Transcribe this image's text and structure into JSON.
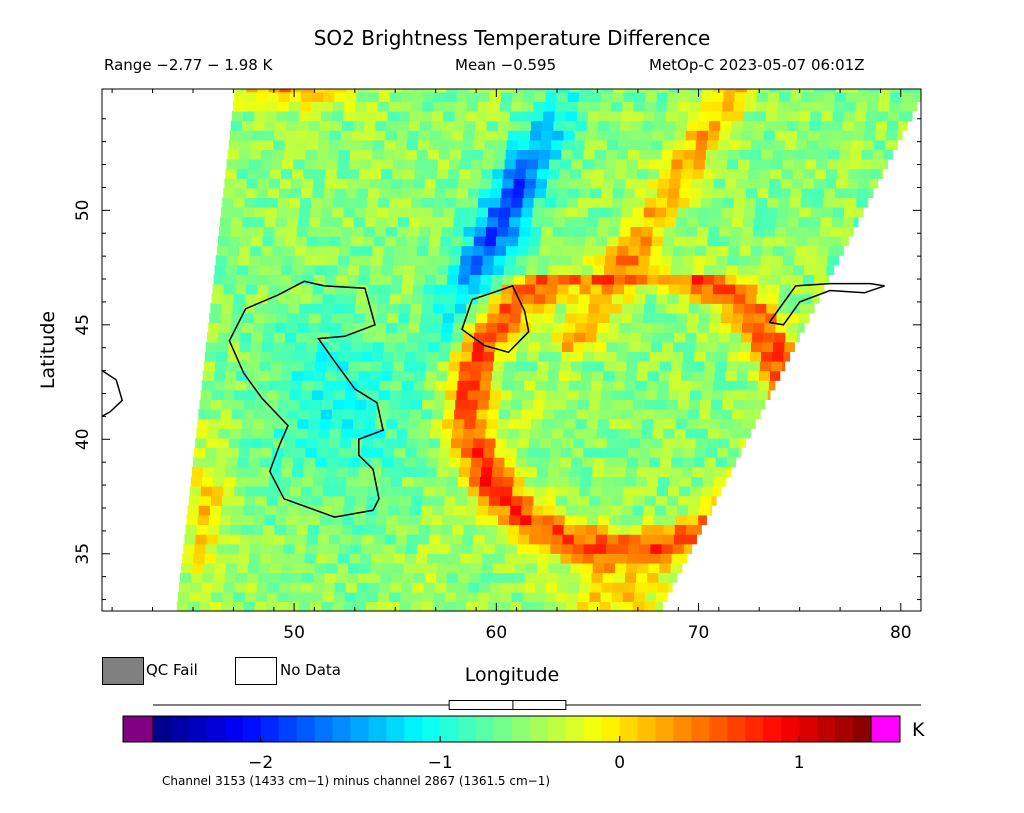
{
  "header": {
    "title": "SO2 Brightness Temperature Difference",
    "range_text": "Range −2.77 − 1.98 K",
    "mean_text": "Mean −0.595",
    "satellite_text": "MetOp-C 2023-05-07 06:01Z"
  },
  "legend": {
    "qc_fail_label": "QC Fail",
    "no_data_label": "No Data",
    "qc_fail_color": "#808080",
    "no_data_color": "#ffffff"
  },
  "colorbar": {
    "unit": "K",
    "min": -2.77,
    "max": 1.98,
    "mean": -0.595,
    "ticks": [
      {
        "value": -2,
        "label": "−2"
      },
      {
        "value": -1,
        "label": "−1"
      },
      {
        "value": 0,
        "label": "0"
      },
      {
        "value": 1,
        "label": "1"
      }
    ],
    "low_color": "#800080",
    "high_color": "#ff00ff"
  },
  "footnote": "Channel 3153 (1433 cm−1) minus channel 2867 (1361.5 cm−1)",
  "chart_data": {
    "type": "heatmap",
    "title": "SO2 Brightness Temperature Difference",
    "xlabel": "Longitude",
    "ylabel": "Latitude",
    "xlim": [
      40.5,
      81
    ],
    "ylim": [
      32.5,
      55.3
    ],
    "x_ticks": [
      {
        "value": 50,
        "label": "50"
      },
      {
        "value": 60,
        "label": "60"
      },
      {
        "value": 70,
        "label": "70"
      },
      {
        "value": 80,
        "label": "80"
      }
    ],
    "y_ticks": [
      {
        "value": 35,
        "label": "35"
      },
      {
        "value": 40,
        "label": "40"
      },
      {
        "value": 45,
        "label": "45"
      },
      {
        "value": 50,
        "label": "50"
      }
    ],
    "units": "K",
    "value_range": [
      -2.77,
      1.98
    ],
    "mean": -0.595,
    "swath_edges": {
      "west": [
        [
          47.1,
          55.3
        ],
        [
          44.2,
          32.5
        ]
      ],
      "east": [
        [
          81,
          54.7
        ],
        [
          68.2,
          32.5
        ]
      ]
    },
    "features": [
      {
        "name": "negative band (blue)",
        "lon": 59.5,
        "lat": 50.0,
        "value": -2.0
      },
      {
        "name": "negative band (blue)",
        "lon": 60.5,
        "lat": 53.0,
        "value": -1.9
      },
      {
        "name": "negative band (blue)",
        "lon": 58.5,
        "lat": 47.0,
        "value": -1.6
      },
      {
        "name": "positive arc (red)",
        "lon": 64.0,
        "lat": 44.5,
        "value": 0.8
      },
      {
        "name": "positive arc (red)",
        "lon": 60.0,
        "lat": 37.5,
        "value": 0.7
      },
      {
        "name": "positive arc (red)",
        "lon": 66.0,
        "lat": 33.5,
        "value": 1.1
      },
      {
        "name": "positive band (orange)",
        "lon": 67.5,
        "lat": 51.0,
        "value": 0.4
      },
      {
        "name": "positive edge (red)",
        "lon": 50.0,
        "lat": 54.8,
        "value": 1.0
      },
      {
        "name": "positive edge (red)",
        "lon": 45.0,
        "lat": 36.5,
        "value": 1.1
      }
    ],
    "coastlines": [
      {
        "name": "caspian-sea",
        "points": [
          [
            51.5,
            46.7
          ],
          [
            53.5,
            46.6
          ],
          [
            54.0,
            45.0
          ],
          [
            52.5,
            44.5
          ],
          [
            51.2,
            44.4
          ],
          [
            52.0,
            43.4
          ],
          [
            53.0,
            42.2
          ],
          [
            54.1,
            41.6
          ],
          [
            54.4,
            40.4
          ],
          [
            53.2,
            40.0
          ],
          [
            53.2,
            39.3
          ],
          [
            53.9,
            38.7
          ],
          [
            54.2,
            37.4
          ],
          [
            53.9,
            36.9
          ],
          [
            52.0,
            36.6
          ],
          [
            49.5,
            37.4
          ],
          [
            48.8,
            38.6
          ],
          [
            49.3,
            39.8
          ],
          [
            49.7,
            40.6
          ],
          [
            48.4,
            41.8
          ],
          [
            47.5,
            42.9
          ],
          [
            46.8,
            44.3
          ],
          [
            47.6,
            45.7
          ],
          [
            49.2,
            46.3
          ],
          [
            50.5,
            46.9
          ],
          [
            51.5,
            46.7
          ]
        ]
      },
      {
        "name": "aral-sea",
        "points": [
          [
            58.8,
            46.1
          ],
          [
            59.8,
            46.4
          ],
          [
            60.8,
            46.7
          ],
          [
            61.4,
            45.6
          ],
          [
            61.6,
            44.7
          ],
          [
            60.6,
            43.8
          ],
          [
            59.4,
            44.1
          ],
          [
            58.3,
            44.8
          ],
          [
            58.8,
            46.1
          ]
        ]
      },
      {
        "name": "lake-balkhash",
        "points": [
          [
            73.5,
            45.1
          ],
          [
            74.8,
            46.7
          ],
          [
            76.5,
            46.8
          ],
          [
            78.5,
            46.8
          ],
          [
            79.2,
            46.7
          ],
          [
            78.2,
            46.4
          ],
          [
            76.5,
            46.5
          ],
          [
            75.0,
            46.0
          ],
          [
            74.2,
            45.0
          ],
          [
            73.5,
            45.1
          ]
        ]
      },
      {
        "name": "black-sea-east-coast",
        "points": [
          [
            40.5,
            43.0
          ],
          [
            41.2,
            42.6
          ],
          [
            41.5,
            41.7
          ],
          [
            40.9,
            41.2
          ],
          [
            40.5,
            41.0
          ]
        ]
      }
    ]
  }
}
